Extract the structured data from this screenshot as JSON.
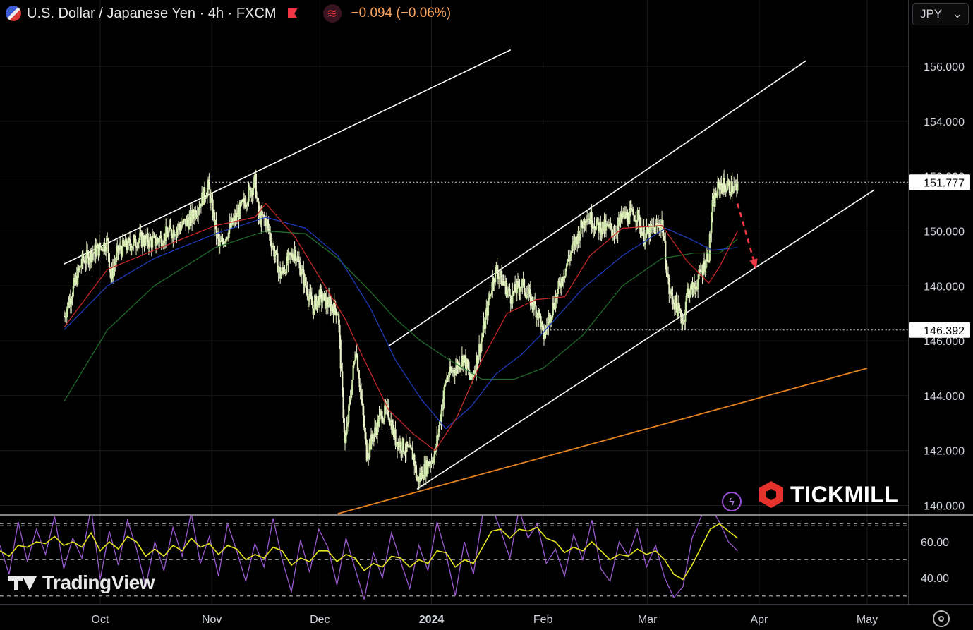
{
  "header": {
    "title": "U.S. Dollar / Japanese Yen · 4h · FXCM",
    "change": "−0.094 (−0.06%)",
    "wave_icon": "≋",
    "currency": "JPY",
    "currency_chevron": "⌄"
  },
  "branding": {
    "tradingview": "TradingView",
    "tickmill": "TICKMILL",
    "bolt_icon": "ϟ"
  },
  "colors": {
    "background": "#000000",
    "candle": "#e9f1c8",
    "candle_up": "#c7e5a0",
    "ema_fast": "#c62828",
    "ema_mid": "#1e3ab8",
    "ema_slow": "#1f6b2a",
    "channel": "#ffffff",
    "trendline": "#e8821e",
    "forecast_arrow": "#f23645",
    "rsi": "#9b59d0",
    "rsi_signal": "#e4e41f",
    "price_label_bg": "#ffffff"
  },
  "chart_data": {
    "type": "candlestick",
    "symbol": "U.S. Dollar / Japanese Yen",
    "timeframe": "4h",
    "x_ticks": [
      "Oct",
      "Nov",
      "Dec",
      "2024",
      "Feb",
      "Mar",
      "Apr",
      "May"
    ],
    "y_ticks": [
      "140.000",
      "142.000",
      "144.000",
      "146.000",
      "148.000",
      "150.000",
      "152.000",
      "154.000",
      "156.000"
    ],
    "ylim": [
      139.7,
      157.0
    ],
    "levels": [
      {
        "label": "151.777",
        "value": 151.777
      },
      {
        "label": "146.392",
        "value": 146.392
      }
    ],
    "price_path": [
      [
        "2023-09-21",
        146.9
      ],
      [
        "2023-09-26",
        148.9
      ],
      [
        "2023-10-03",
        149.6
      ],
      [
        "2023-10-04",
        148.3
      ],
      [
        "2023-10-06",
        149.3
      ],
      [
        "2023-10-12",
        149.7
      ],
      [
        "2023-10-16",
        149.6
      ],
      [
        "2023-10-26",
        150.4
      ],
      [
        "2023-10-31",
        151.6
      ],
      [
        "2023-11-03",
        149.4
      ],
      [
        "2023-11-09",
        150.8
      ],
      [
        "2023-11-13",
        151.8
      ],
      [
        "2023-11-14",
        150.5
      ],
      [
        "2023-11-16",
        150.4
      ],
      [
        "2023-11-20",
        148.4
      ],
      [
        "2023-11-24",
        149.3
      ],
      [
        "2023-11-29",
        147.2
      ],
      [
        "2023-12-01",
        147.6
      ],
      [
        "2023-12-06",
        147.1
      ],
      [
        "2023-12-07",
        144.6
      ],
      [
        "2023-12-08",
        142.2
      ],
      [
        "2023-12-11",
        145.8
      ],
      [
        "2023-12-14",
        141.9
      ],
      [
        "2023-12-18",
        143.3
      ],
      [
        "2023-12-20",
        143.4
      ],
      [
        "2023-12-22",
        142.4
      ],
      [
        "2023-12-27",
        141.8
      ],
      [
        "2023-12-28",
        140.9
      ],
      [
        "2024-01-02",
        141.9
      ],
      [
        "2024-01-05",
        144.6
      ],
      [
        "2024-01-10",
        145.4
      ],
      [
        "2024-01-12",
        144.5
      ],
      [
        "2024-01-15",
        146.1
      ],
      [
        "2024-01-18",
        148.2
      ],
      [
        "2024-01-19",
        148.6
      ],
      [
        "2024-01-23",
        147.6
      ],
      [
        "2024-01-26",
        148.1
      ],
      [
        "2024-01-31",
        146.9
      ],
      [
        "2024-02-01",
        146.1
      ],
      [
        "2024-02-06",
        148.2
      ],
      [
        "2024-02-09",
        149.3
      ],
      [
        "2024-02-13",
        150.6
      ],
      [
        "2024-02-16",
        150.2
      ],
      [
        "2024-02-21",
        150.0
      ],
      [
        "2024-02-23",
        150.5
      ],
      [
        "2024-02-27",
        150.6
      ],
      [
        "2024-02-29",
        149.8
      ],
      [
        "2024-03-05",
        150.3
      ],
      [
        "2024-03-07",
        147.8
      ],
      [
        "2024-03-11",
        146.7
      ],
      [
        "2024-03-12",
        147.8
      ],
      [
        "2024-03-14",
        147.9
      ],
      [
        "2024-03-18",
        149.2
      ],
      [
        "2024-03-19",
        150.9
      ],
      [
        "2024-03-21",
        151.7
      ],
      [
        "2024-03-26",
        151.5
      ]
    ],
    "ema_fast": [
      [
        "2023-09-21",
        146.5
      ],
      [
        "2023-10-03",
        148.6
      ],
      [
        "2023-10-16",
        149.3
      ],
      [
        "2023-11-02",
        150.2
      ],
      [
        "2023-11-13",
        150.5
      ],
      [
        "2023-11-16",
        151.0
      ],
      [
        "2023-11-24",
        149.8
      ],
      [
        "2023-12-01",
        148.3
      ],
      [
        "2023-12-08",
        146.8
      ],
      [
        "2023-12-13",
        145.4
      ],
      [
        "2023-12-20",
        143.5
      ],
      [
        "2023-12-27",
        142.6
      ],
      [
        "2024-01-02",
        142.0
      ],
      [
        "2024-01-08",
        143.2
      ],
      [
        "2024-01-15",
        145.3
      ],
      [
        "2024-01-22",
        147.0
      ],
      [
        "2024-01-30",
        147.5
      ],
      [
        "2024-02-07",
        147.6
      ],
      [
        "2024-02-14",
        149.1
      ],
      [
        "2024-02-23",
        150.1
      ],
      [
        "2024-03-05",
        150.2
      ],
      [
        "2024-03-12",
        148.9
      ],
      [
        "2024-03-18",
        148.1
      ],
      [
        "2024-03-21",
        148.7
      ],
      [
        "2024-03-26",
        150.0
      ]
    ],
    "ema_mid": [
      [
        "2023-09-21",
        146.4
      ],
      [
        "2023-10-03",
        148.0
      ],
      [
        "2023-10-16",
        149.0
      ],
      [
        "2023-11-02",
        149.9
      ],
      [
        "2023-11-16",
        150.5
      ],
      [
        "2023-11-27",
        150.1
      ],
      [
        "2023-12-06",
        149.1
      ],
      [
        "2023-12-15",
        147.2
      ],
      [
        "2023-12-22",
        145.3
      ],
      [
        "2023-12-29",
        143.9
      ],
      [
        "2024-01-05",
        142.8
      ],
      [
        "2024-01-12",
        143.6
      ],
      [
        "2024-01-19",
        144.8
      ],
      [
        "2024-01-26",
        145.5
      ],
      [
        "2024-02-01",
        146.3
      ],
      [
        "2024-02-12",
        147.9
      ],
      [
        "2024-02-23",
        149.1
      ],
      [
        "2024-03-06",
        150.1
      ],
      [
        "2024-03-13",
        149.7
      ],
      [
        "2024-03-19",
        149.3
      ],
      [
        "2024-03-26",
        149.4
      ]
    ],
    "ema_slow": [
      [
        "2023-09-21",
        143.8
      ],
      [
        "2023-10-03",
        146.4
      ],
      [
        "2023-10-16",
        148.0
      ],
      [
        "2023-11-02",
        149.4
      ],
      [
        "2023-11-16",
        150.0
      ],
      [
        "2023-11-27",
        149.9
      ],
      [
        "2023-12-06",
        149.0
      ],
      [
        "2023-12-15",
        147.8
      ],
      [
        "2023-12-22",
        146.8
      ],
      [
        "2023-12-29",
        146.0
      ],
      [
        "2024-01-06",
        145.3
      ],
      [
        "2024-01-15",
        144.6
      ],
      [
        "2024-01-24",
        144.6
      ],
      [
        "2024-02-01",
        145.0
      ],
      [
        "2024-02-12",
        146.2
      ],
      [
        "2024-02-23",
        148.0
      ],
      [
        "2024-03-05",
        149.0
      ],
      [
        "2024-03-14",
        149.2
      ],
      [
        "2024-03-21",
        149.2
      ],
      [
        "2024-03-26",
        149.7
      ]
    ],
    "drawings": {
      "channel_top_1": [
        [
          "2023-09-21",
          148.8
        ],
        [
          "2024-01-23",
          156.6
        ]
      ],
      "channel_top_2": [
        [
          "2023-12-20",
          145.8
        ],
        [
          "2024-04-14",
          156.2
        ]
      ],
      "channel_bottom": [
        [
          "2023-12-28",
          140.6
        ],
        [
          "2024-05-03",
          151.5
        ]
      ],
      "trendline": [
        [
          "2023-12-06",
          139.7
        ],
        [
          "2024-05-01",
          145.0
        ]
      ],
      "forecast_arrow": [
        [
          "2024-03-26",
          151.0
        ],
        [
          "2024-03-31",
          148.7
        ]
      ]
    },
    "rsi": {
      "y_ticks": [
        "40.00",
        "60.00"
      ],
      "ylim": [
        25,
        82
      ],
      "levels": [
        30,
        50,
        70
      ],
      "values": [
        58,
        42,
        71,
        49,
        67,
        53,
        74,
        45,
        62,
        51,
        79,
        39,
        66,
        47,
        72,
        56,
        35,
        60,
        44,
        68,
        52,
        76,
        48,
        63,
        41,
        70,
        55,
        38,
        59,
        46,
        73,
        50,
        32,
        61,
        43,
        67,
        57,
        36,
        62,
        45,
        28,
        54,
        40,
        65,
        49,
        34,
        58,
        44,
        71,
        53,
        30,
        60,
        42,
        75,
        80,
        66,
        51,
        78,
        62,
        70,
        48,
        56,
        41,
        64,
        50,
        72,
        45,
        38,
        60,
        52,
        67,
        46,
        58,
        40,
        29,
        35,
        62,
        74,
        80,
        71,
        60,
        55
      ],
      "signal": [
        55,
        52,
        58,
        57,
        60,
        59,
        63,
        58,
        60,
        57,
        65,
        55,
        60,
        56,
        63,
        60,
        52,
        56,
        52,
        58,
        55,
        62,
        57,
        59,
        53,
        58,
        56,
        50,
        53,
        51,
        57,
        55,
        47,
        51,
        49,
        55,
        55,
        49,
        53,
        51,
        44,
        48,
        46,
        52,
        51,
        46,
        50,
        48,
        55,
        54,
        46,
        50,
        48,
        57,
        66,
        67,
        62,
        67,
        66,
        68,
        62,
        60,
        54,
        57,
        55,
        60,
        55,
        50,
        53,
        52,
        56,
        53,
        55,
        50,
        42,
        39,
        47,
        57,
        67,
        70,
        66,
        62
      ]
    }
  }
}
